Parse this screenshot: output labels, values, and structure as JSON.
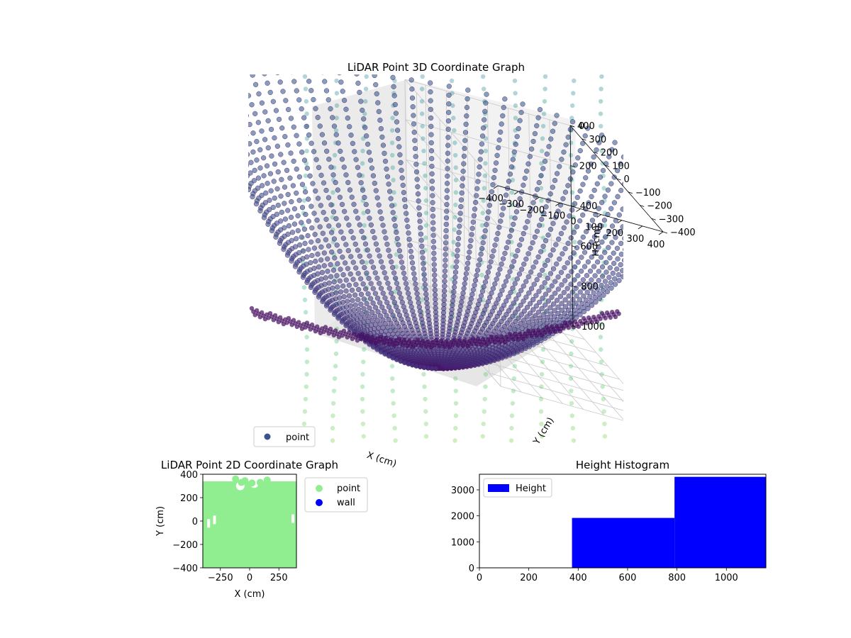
{
  "chart_data": [
    {
      "type": "scatter",
      "title": "LiDAR Point 3D Coordinate Graph",
      "xlabel": "X (cm)",
      "ylabel": "Y (cm)",
      "zlabel": "H (cm)",
      "x_ticks": [
        "−400",
        "−300",
        "−200",
        "−100",
        "0",
        "100",
        "200",
        "300",
        "400"
      ],
      "y_ticks": [
        "−400",
        "−300",
        "−200",
        "−100",
        "0",
        "100",
        "200",
        "300",
        "400"
      ],
      "z_ticks": [
        "0",
        "200",
        "400",
        "600",
        "800",
        "1000"
      ],
      "xlim": [
        -400,
        400
      ],
      "ylim": [
        -400,
        400
      ],
      "zlim": [
        0,
        1000
      ],
      "z_inverted": true,
      "grid": true,
      "legend": {
        "placement": "lower-left",
        "entries": [
          {
            "label": "point",
            "color": "#3b528b"
          }
        ]
      },
      "colormap": "viridis",
      "surface": {
        "shape": "bowl",
        "depth_min": 0,
        "depth_max": 1150,
        "rings": 60,
        "rays": 40
      }
    },
    {
      "type": "scatter",
      "title": "LiDAR Point 2D Coordinate Graph",
      "xlabel": "X (cm)",
      "ylabel": "Y (cm)",
      "x_ticks": [
        "−250",
        "0",
        "250"
      ],
      "y_ticks": [
        "400",
        "200",
        "0",
        "−200",
        "−400"
      ],
      "xlim": [
        -400,
        400
      ],
      "ylim": [
        -400,
        400
      ],
      "legend": {
        "placement": "outside-right",
        "entries": [
          {
            "label": "point",
            "color": "#90ee90"
          },
          {
            "label": "wall",
            "color": "#0000ff"
          }
        ]
      }
    },
    {
      "type": "bar",
      "title": "Height Histogram",
      "x_ticks": [
        "0",
        "200",
        "400",
        "600",
        "800",
        "1000"
      ],
      "y_ticks": [
        "0",
        "1000",
        "2000",
        "3000"
      ],
      "xlim": [
        0,
        1160
      ],
      "ylim": [
        0,
        3600
      ],
      "bins": [
        {
          "x0": 375,
          "x1": 790,
          "count": 1920
        },
        {
          "x0": 790,
          "x1": 1160,
          "count": 3500
        }
      ],
      "color": "#0000ff",
      "legend": {
        "placement": "top-left",
        "entries": [
          {
            "label": "Height",
            "color": "#0000ff"
          }
        ]
      }
    }
  ]
}
